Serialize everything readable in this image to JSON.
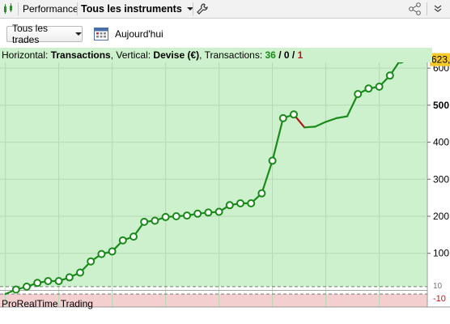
{
  "toolbar": {
    "tab_label": "Performance",
    "instrument_label": "Tous les instruments"
  },
  "filters": {
    "trades_label": "Tous les trades",
    "date_label": "Aujourd'hui"
  },
  "info": {
    "horizontal_prefix": "Horizontal: ",
    "horizontal_value": "Transactions",
    "vertical_prefix": ", Vertical: ",
    "vertical_value": "Devise (€)",
    "transactions_prefix": ", Transactions: ",
    "count_total": "36",
    "slash1": " / ",
    "count_neutral": "0",
    "slash2": " / ",
    "count_losing": "1"
  },
  "footer_label": "ProRealTime Trading",
  "value_badge": "623,",
  "colors": {
    "positive_bg": "#ccf1cc",
    "negative_bg": "#f3cfd0",
    "line": "#1a8a1a",
    "loss_segment": "#b0151a",
    "badge": "#f5c92a"
  },
  "chart_data": {
    "type": "line",
    "x": [
      0,
      1,
      2,
      3,
      4,
      5,
      6,
      7,
      8,
      9,
      10,
      11,
      12,
      13,
      14,
      15,
      16,
      17,
      18,
      19,
      20,
      21,
      22,
      23,
      24,
      25,
      26,
      27,
      28,
      29,
      30,
      31,
      32,
      33,
      34,
      35,
      36,
      37
    ],
    "y": [
      -10,
      2,
      10,
      20,
      25,
      25,
      35,
      48,
      78,
      98,
      105,
      135,
      145,
      185,
      188,
      198,
      200,
      202,
      207,
      210,
      212,
      230,
      235,
      235,
      262,
      350,
      465,
      475,
      440,
      442,
      455,
      465,
      470,
      530,
      545,
      550,
      580,
      623
    ],
    "markers": [
      1,
      2,
      3,
      4,
      5,
      6,
      7,
      8,
      9,
      10,
      11,
      12,
      13,
      14,
      15,
      16,
      17,
      18,
      19,
      20,
      21,
      22,
      23,
      24,
      25,
      26,
      27,
      33,
      34,
      35,
      36,
      37
    ],
    "losing_segment": [
      27,
      28
    ],
    "xlim": [
      -0.5,
      39.5
    ],
    "ylim": [
      -45,
      655
    ],
    "x_ticks": [
      0,
      5,
      10,
      15,
      20,
      25,
      30,
      35
    ],
    "y_ticks": [
      600,
      500,
      400,
      300,
      200,
      100
    ],
    "y_side_labels": [
      "10",
      "-10"
    ],
    "zero_band": [
      10,
      -10
    ]
  }
}
